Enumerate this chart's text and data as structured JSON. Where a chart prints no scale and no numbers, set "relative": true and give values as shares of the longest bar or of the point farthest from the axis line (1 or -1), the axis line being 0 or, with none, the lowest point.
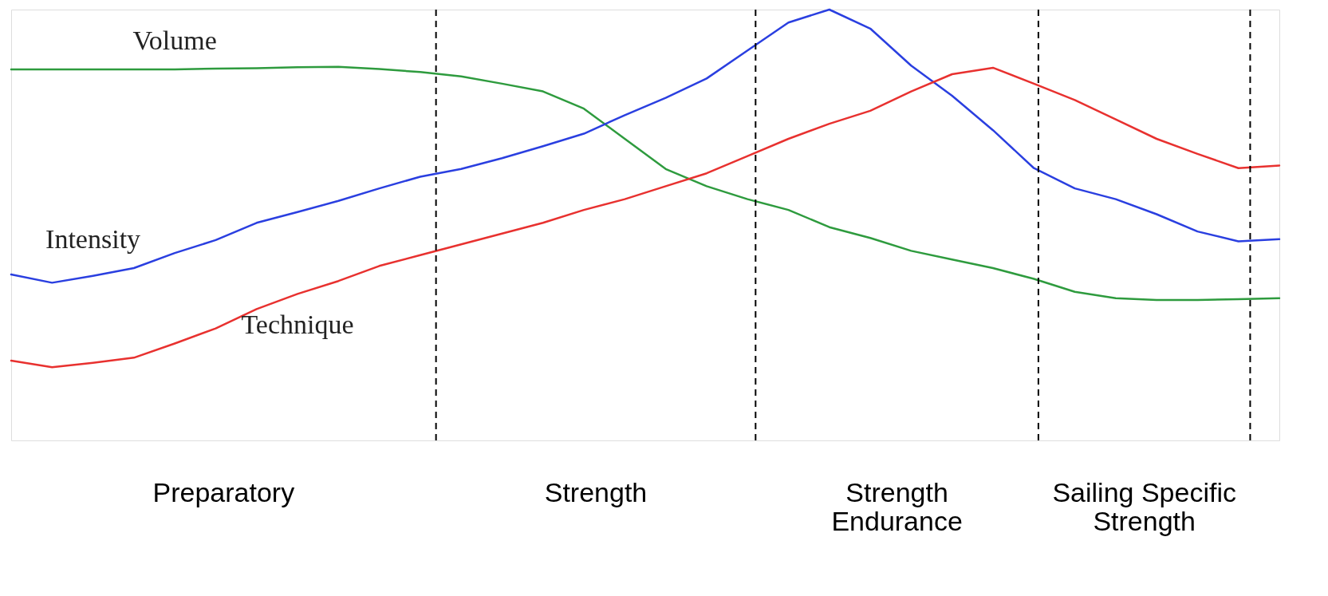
{
  "chart_data": {
    "type": "line",
    "relative": true,
    "grid": false,
    "legend": false,
    "marker": "none",
    "line_style": "solid",
    "categories": [
      null,
      null,
      null,
      null,
      null,
      null,
      null,
      null,
      null,
      null,
      null,
      null,
      null,
      null,
      null,
      null,
      null,
      null,
      null,
      null,
      null,
      null,
      null,
      null,
      null,
      null,
      null,
      null,
      null,
      null,
      null,
      null
    ],
    "series": [
      {
        "name": "Volume",
        "color": "#2e9b3e",
        "values": [
          0.861,
          0.861,
          0.861,
          0.861,
          0.861,
          0.863,
          0.864,
          0.866,
          0.867,
          0.862,
          0.855,
          0.845,
          0.828,
          0.81,
          0.77,
          0.7,
          0.63,
          0.59,
          0.56,
          0.535,
          0.495,
          0.47,
          0.44,
          0.42,
          0.4,
          0.375,
          0.345,
          0.33,
          0.326,
          0.326,
          0.328,
          0.33
        ]
      },
      {
        "name": "Intensity",
        "color": "#2a3fe0",
        "values": [
          0.385,
          0.366,
          0.382,
          0.4,
          0.435,
          0.465,
          0.505,
          0.53,
          0.556,
          0.585,
          0.612,
          0.63,
          0.655,
          0.683,
          0.712,
          0.755,
          0.795,
          0.84,
          0.905,
          0.97,
          1.0,
          0.956,
          0.87,
          0.8,
          0.72,
          0.632,
          0.585,
          0.56,
          0.525,
          0.485,
          0.462,
          0.467
        ]
      },
      {
        "name": "Technique",
        "color": "#e8312f",
        "values": [
          0.185,
          0.17,
          0.18,
          0.192,
          0.225,
          0.26,
          0.305,
          0.34,
          0.37,
          0.405,
          0.43,
          0.455,
          0.48,
          0.505,
          0.535,
          0.56,
          0.59,
          0.62,
          0.66,
          0.7,
          0.735,
          0.765,
          0.81,
          0.85,
          0.865,
          0.828,
          0.79,
          0.745,
          0.7,
          0.665,
          0.632,
          0.638
        ]
      }
    ],
    "annotations": [
      "Preparatory",
      "Strength",
      "Strength\nEndurance",
      "Sailing Specific\nStrength"
    ]
  }
}
